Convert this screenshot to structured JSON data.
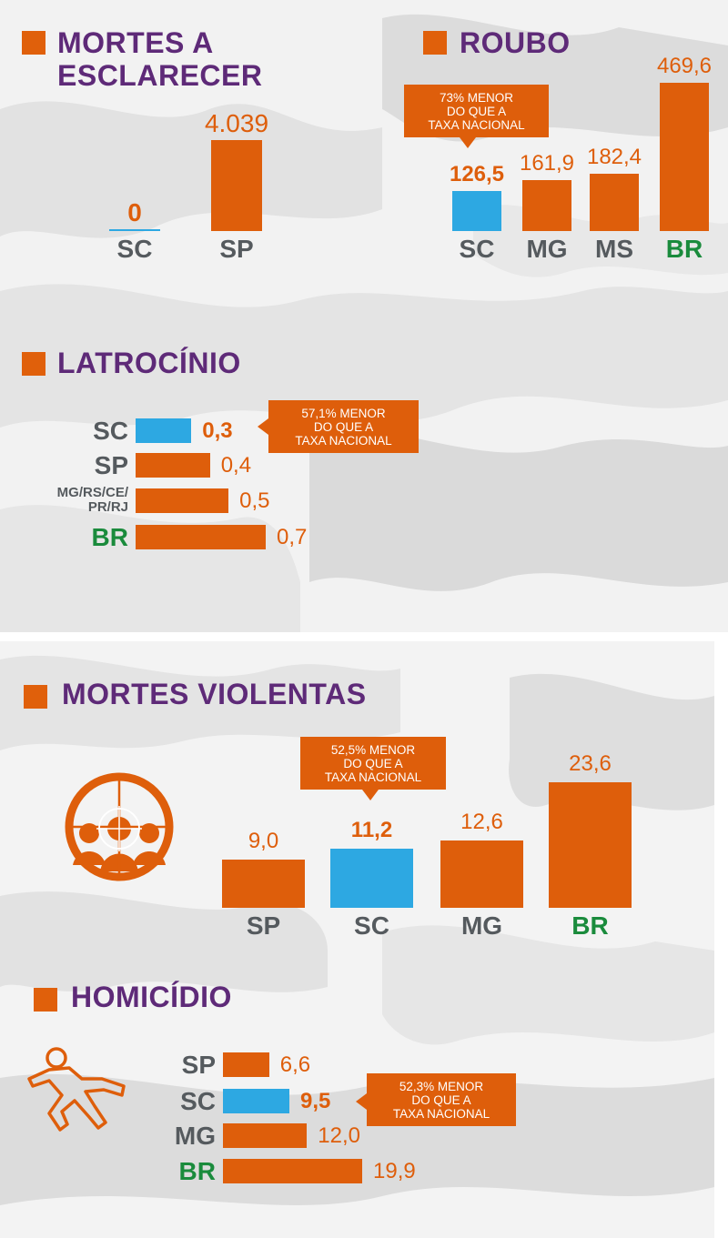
{
  "sections": {
    "mortes_esclarecer": {
      "title_line1": "MORTES A",
      "title_line2": "ESCLARECER"
    },
    "roubo": {
      "title": "ROUBO",
      "callout": [
        "73% MENOR",
        "DO QUE A",
        "TAXA NACIONAL"
      ]
    },
    "latrocinio": {
      "title": "LATROCÍNIO",
      "callout": [
        "57,1% MENOR",
        "DO QUE A",
        "TAXA NACIONAL"
      ]
    },
    "mortes_violentas": {
      "title": "MORTES VIOLENTAS",
      "callout": [
        "52,5% MENOR",
        "DO QUE A",
        "TAXA NACIONAL"
      ]
    },
    "homicidio": {
      "title": "HOMICÍDIO",
      "callout": [
        "52,3% MENOR",
        "DO QUE A",
        "TAXA NACIONAL"
      ]
    }
  },
  "colors": {
    "accent": "#de5e0b",
    "highlight": "#2da8e2",
    "title": "#5e2a78",
    "national": "#1a8b3c",
    "label": "#555a5e"
  },
  "icons": {
    "mortes_violentas": "crosshair-people-icon",
    "homicidio": "body-outline-icon"
  },
  "chart_data": [
    {
      "type": "bar",
      "orientation": "vertical",
      "title": "MORTES A ESCLARECER",
      "categories": [
        "SC",
        "SP"
      ],
      "values": [
        0,
        4039
      ],
      "value_labels": [
        "0",
        "4.039"
      ],
      "highlight": "SC"
    },
    {
      "type": "bar",
      "orientation": "vertical",
      "title": "ROUBO",
      "categories": [
        "SC",
        "MG",
        "MS",
        "BR"
      ],
      "values": [
        126.5,
        161.9,
        182.4,
        469.6
      ],
      "value_labels": [
        "126,5",
        "161,9",
        "182,4",
        "469,6"
      ],
      "highlight": "SC",
      "national": "BR"
    },
    {
      "type": "bar",
      "orientation": "horizontal",
      "title": "LATROCÍNIO",
      "categories": [
        "SC",
        "SP",
        "MG/RS/CE/PR/RJ",
        "BR"
      ],
      "category_lines": [
        [
          "SC"
        ],
        [
          "SP"
        ],
        [
          "MG/RS/CE/",
          "PR/RJ"
        ],
        [
          "BR"
        ]
      ],
      "values": [
        0.3,
        0.4,
        0.5,
        0.7
      ],
      "value_labels": [
        "0,3",
        "0,4",
        "0,5",
        "0,7"
      ],
      "highlight": "SC",
      "national": "BR"
    },
    {
      "type": "bar",
      "orientation": "vertical",
      "title": "MORTES VIOLENTAS",
      "categories": [
        "SP",
        "SC",
        "MG",
        "BR"
      ],
      "values": [
        9.0,
        11.2,
        12.6,
        23.6
      ],
      "value_labels": [
        "9,0",
        "11,2",
        "12,6",
        "23,6"
      ],
      "highlight": "SC",
      "national": "BR"
    },
    {
      "type": "bar",
      "orientation": "horizontal",
      "title": "HOMICÍDIO",
      "categories": [
        "SP",
        "SC",
        "MG",
        "BR"
      ],
      "values": [
        6.6,
        9.5,
        12.0,
        19.9
      ],
      "value_labels": [
        "6,6",
        "9,5",
        "12,0",
        "19,9"
      ],
      "highlight": "SC",
      "national": "BR"
    }
  ]
}
